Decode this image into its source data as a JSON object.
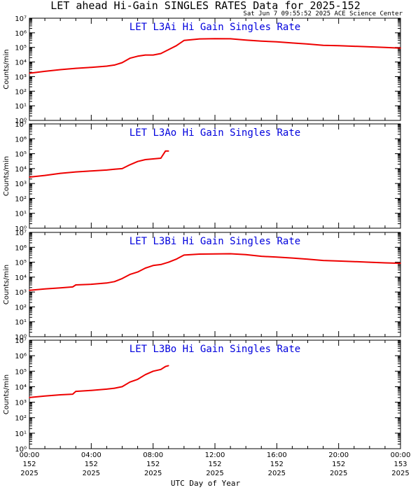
{
  "title": "LET ahead Hi-Gain SINGLES RATES Data for 2025-152",
  "timestamp": "Sat Jun  7 09:55:52 2025 ACE Science Center",
  "xlabel": "UTC Day of Year",
  "colors": {
    "series": "#ee0000",
    "panel_title": "#0000dd",
    "axis": "#000000"
  },
  "chart_data": [
    {
      "type": "line",
      "title": "LET L3Ai Hi Gain Singles Rate",
      "ylabel": "Counts/min",
      "yscale": "log",
      "ylim": [
        1,
        10000000
      ],
      "yticks": [
        "10⁰",
        "10¹",
        "10²",
        "10³",
        "10⁴",
        "10⁵",
        "10⁶",
        "10⁷"
      ],
      "xlim": [
        0,
        24
      ],
      "series": [
        {
          "x": [
            0,
            1,
            2,
            3,
            4,
            5,
            5.5,
            6,
            6.5,
            7,
            7.5,
            8,
            8.5,
            9,
            9.5,
            10,
            11,
            12,
            13,
            14,
            15,
            16,
            17,
            18,
            19,
            20,
            21,
            22,
            23,
            24
          ],
          "y": [
            1700,
            2300,
            3000,
            3700,
            4300,
            5200,
            6200,
            9000,
            18000,
            25000,
            30000,
            30000,
            38000,
            70000,
            130000,
            300000,
            380000,
            400000,
            390000,
            320000,
            270000,
            240000,
            200000,
            170000,
            140000,
            130000,
            120000,
            110000,
            100000,
            90000
          ]
        }
      ]
    },
    {
      "type": "line",
      "title": "LET L3Ao Hi Gain Singles Rate",
      "ylabel": "Counts/min",
      "yscale": "log",
      "ylim": [
        1,
        10000000
      ],
      "yticks": [
        "10⁰",
        "10¹",
        "10²",
        "10³",
        "10⁴",
        "10⁵",
        "10⁶",
        "10⁷"
      ],
      "xlim": [
        0,
        24
      ],
      "series": [
        {
          "x": [
            0,
            1,
            2,
            3,
            4,
            5,
            5.5,
            6,
            6.5,
            7,
            7.5,
            8,
            8.5,
            8.8,
            9
          ],
          "y": [
            2700,
            3500,
            4800,
            6000,
            7000,
            8000,
            9000,
            10000,
            18000,
            30000,
            40000,
            45000,
            50000,
            150000,
            150000
          ]
        }
      ]
    },
    {
      "type": "line",
      "title": "LET L3Bi Hi Gain Singles Rate",
      "ylabel": "Counts/min",
      "yscale": "log",
      "ylim": [
        1,
        10000000
      ],
      "yticks": [
        "10⁰",
        "10¹",
        "10²",
        "10³",
        "10⁴",
        "10⁵",
        "10⁶",
        "10⁷"
      ],
      "xlim": [
        0,
        24
      ],
      "series": [
        {
          "x": [
            0,
            1,
            2,
            2.8,
            3,
            4,
            5,
            5.5,
            6,
            6.5,
            7,
            7.5,
            8,
            8.5,
            9,
            9.5,
            10,
            11,
            12,
            13,
            14,
            15,
            16,
            17,
            18,
            19,
            20,
            21,
            22,
            23,
            24
          ],
          "y": [
            1300,
            1600,
            1900,
            2200,
            3000,
            3300,
            4000,
            5000,
            8000,
            15000,
            22000,
            40000,
            60000,
            70000,
            100000,
            160000,
            300000,
            350000,
            360000,
            370000,
            320000,
            250000,
            220000,
            190000,
            160000,
            130000,
            120000,
            110000,
            100000,
            90000,
            85000
          ]
        }
      ]
    },
    {
      "type": "line",
      "title": "LET L3Bo Hi Gain Singles Rate",
      "ylabel": "Counts/min",
      "yscale": "log",
      "ylim": [
        1,
        10000000
      ],
      "yticks": [
        "10⁰",
        "10¹",
        "10²",
        "10³",
        "10⁴",
        "10⁵",
        "10⁶",
        "10⁷"
      ],
      "xlim": [
        0,
        24
      ],
      "series": [
        {
          "x": [
            0,
            1,
            2,
            2.8,
            3,
            4,
            5,
            5.5,
            6,
            6.5,
            7,
            7.5,
            8,
            8.5,
            8.8,
            9
          ],
          "y": [
            2000,
            2500,
            3000,
            3300,
            5000,
            5800,
            7000,
            8000,
            10000,
            20000,
            30000,
            60000,
            100000,
            130000,
            200000,
            230000
          ]
        }
      ]
    }
  ],
  "xticks": [
    {
      "x": 0,
      "time": "00:00",
      "doy": "152",
      "year": "2025"
    },
    {
      "x": 4,
      "time": "04:00",
      "doy": "152",
      "year": "2025"
    },
    {
      "x": 8,
      "time": "08:00",
      "doy": "152",
      "year": "2025"
    },
    {
      "x": 12,
      "time": "12:00",
      "doy": "152",
      "year": "2025"
    },
    {
      "x": 16,
      "time": "16:00",
      "doy": "152",
      "year": "2025"
    },
    {
      "x": 20,
      "time": "20:00",
      "doy": "152",
      "year": "2025"
    },
    {
      "x": 24,
      "time": "00:00",
      "doy": "153",
      "year": "2025"
    }
  ]
}
